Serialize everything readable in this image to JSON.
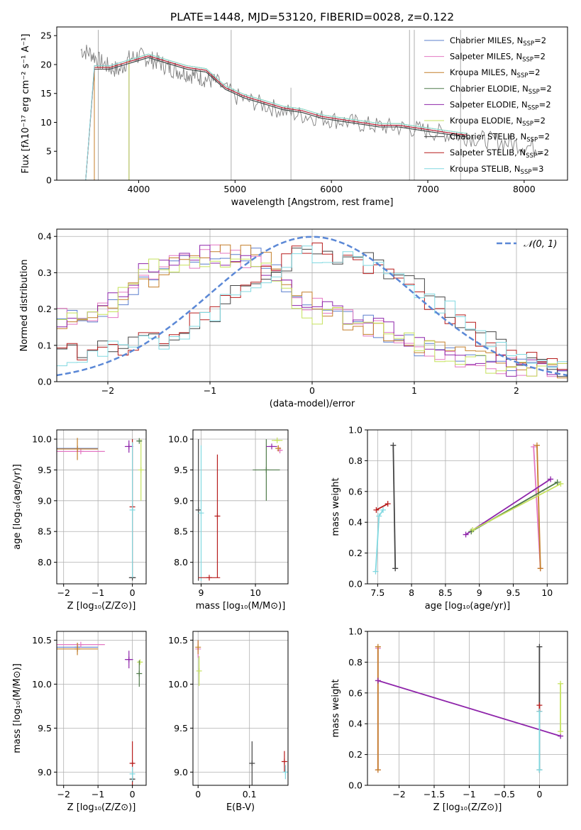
{
  "figure": {
    "title": "PLATE=1448, MJD=53120, FIBERID=0028, z=0.122"
  },
  "chart_data": [
    {
      "id": "spectrum",
      "type": "line",
      "title": "PLATE=1448, MJD=53120, FIBERID=0028, z=0.122",
      "xlabel": "wavelength [Angstrom, rest frame]",
      "ylabel": "Flux [fλ10⁻¹⁷ erg cm⁻² s⁻¹ A⁻¹]",
      "xlim": [
        3150,
        8450
      ],
      "ylim": [
        0,
        26.5
      ],
      "xticks": [
        4000,
        5000,
        6000,
        7000,
        8000
      ],
      "yticks": [
        0,
        5,
        10,
        15,
        20,
        25
      ],
      "grid": false,
      "legend_position": "upper-right",
      "data_series": {
        "name": "data",
        "color": "#808080",
        "x": [
          3400,
          3500,
          3600,
          3700,
          3800,
          3900,
          4000,
          4100,
          4200,
          4300,
          4400,
          4500,
          4600,
          4700,
          4800,
          5000,
          5200,
          5400,
          5600,
          5800,
          6000,
          6200,
          6400,
          6600,
          6800,
          7000,
          7200,
          7400,
          7600,
          7800,
          8000,
          8200
        ],
        "y": [
          22.5,
          22.0,
          20.5,
          19.5,
          19.0,
          21.0,
          21.5,
          21.0,
          20.5,
          19.5,
          19.0,
          18.5,
          18.0,
          17.5,
          17.0,
          14.5,
          13.5,
          12.5,
          11.5,
          11.0,
          10.5,
          10.0,
          9.5,
          9.2,
          9.0,
          8.5,
          8.0,
          7.5,
          7.0,
          6.5,
          6.0,
          5.5
        ]
      },
      "series": [
        {
          "name": "Chabrier MILES, N_SSP=2",
          "color": "#5b7fce",
          "start": 3540
        },
        {
          "name": "Salpeter MILES, N_SSP=2",
          "color": "#e377c2",
          "start": 3540
        },
        {
          "name": "Kroupa MILES, N_SSP=2",
          "color": "#c47f2a",
          "start": 3540
        },
        {
          "name": "Chabrier ELODIE, N_SSP=2",
          "color": "#4f7a4a",
          "start": 3900
        },
        {
          "name": "Salpeter ELODIE, N_SSP=2",
          "color": "#8e24aa",
          "start": 3900
        },
        {
          "name": "Kroupa ELODIE, N_SSP=2",
          "color": "#c5e25c",
          "start": 3900
        },
        {
          "name": "Chabrier STELIB, N_SSP=2",
          "color": "#444444",
          "start": 3450
        },
        {
          "name": "Salpeter STELIB, N_SSP=2",
          "color": "#b71c1c",
          "start": 3450
        },
        {
          "name": "Kroupa STELIB, N_SSP=3",
          "color": "#80d8e0",
          "start": 3450
        }
      ],
      "model_y": {
        "x": [
          3540,
          3700,
          3900,
          4100,
          4300,
          4500,
          4700,
          4900,
          5100,
          5300,
          5500,
          5700,
          5900,
          6100,
          6300,
          6500,
          6700,
          6900,
          7100,
          7300,
          7400
        ],
        "y": [
          19.5,
          19.5,
          20.5,
          21.5,
          20.5,
          19.5,
          19.0,
          16.0,
          14.5,
          13.5,
          12.5,
          12.0,
          11.0,
          10.5,
          10.0,
          9.5,
          9.5,
          9.0,
          8.5,
          8.0,
          7.8
        ]
      }
    },
    {
      "id": "residuals",
      "type": "line",
      "xlabel": "(data-model)/error",
      "ylabel": "Normed distribution",
      "xlim": [
        -2.5,
        2.5
      ],
      "ylim": [
        0,
        0.42
      ],
      "xticks": [
        -2,
        -1,
        0,
        1,
        2
      ],
      "yticks": [
        0.0,
        0.1,
        0.2,
        0.3,
        0.4
      ],
      "grid": true,
      "legend": "𝒩(0, 1)",
      "legend_position": "upper-right",
      "gaussian": {
        "mean": 0,
        "sigma": 1,
        "color": "#5b88d6"
      },
      "histograms": [
        {
          "color": "#5b7fce",
          "x": [
            -2.5,
            -2.0,
            -1.5,
            -1.0,
            -0.5,
            0.0,
            0.5,
            1.0,
            1.5,
            2.0,
            2.5
          ],
          "y": [
            0.16,
            0.2,
            0.3,
            0.34,
            0.35,
            0.2,
            0.17,
            0.1,
            0.06,
            0.04,
            0.03
          ]
        },
        {
          "color": "#e377c2",
          "x": [
            -2.5,
            -2.0,
            -1.5,
            -1.0,
            -0.5,
            0.0,
            0.5,
            1.0,
            1.5,
            2.0,
            2.5
          ],
          "y": [
            0.18,
            0.19,
            0.31,
            0.35,
            0.33,
            0.21,
            0.16,
            0.09,
            0.06,
            0.04,
            0.03
          ]
        },
        {
          "color": "#c47f2a",
          "x": [
            -2.5,
            -2.0,
            -1.5,
            -1.0,
            -0.5,
            0.0,
            0.5,
            1.0,
            1.5,
            2.0,
            2.5
          ],
          "y": [
            0.17,
            0.2,
            0.29,
            0.36,
            0.34,
            0.22,
            0.15,
            0.1,
            0.07,
            0.04,
            0.03
          ]
        },
        {
          "color": "#8e24aa",
          "x": [
            -2.5,
            -2.0,
            -1.5,
            -1.0,
            -0.5,
            0.0,
            0.5,
            1.0,
            1.5,
            2.0,
            2.5
          ],
          "y": [
            0.16,
            0.22,
            0.34,
            0.36,
            0.31,
            0.2,
            0.17,
            0.11,
            0.06,
            0.04,
            0.03
          ]
        },
        {
          "color": "#c5e25c",
          "x": [
            -2.5,
            -2.0,
            -1.5,
            -1.0,
            -0.5,
            0.0,
            0.5,
            1.0,
            1.5,
            2.0,
            2.5
          ],
          "y": [
            0.17,
            0.21,
            0.32,
            0.33,
            0.32,
            0.19,
            0.16,
            0.1,
            0.05,
            0.03,
            0.03
          ]
        },
        {
          "color": "#444444",
          "x": [
            -2.5,
            -2.0,
            -1.5,
            -1.0,
            -0.5,
            0.0,
            0.5,
            1.0,
            1.5,
            2.0,
            2.5
          ],
          "y": [
            0.08,
            0.09,
            0.11,
            0.18,
            0.29,
            0.36,
            0.34,
            0.27,
            0.16,
            0.07,
            0.03
          ]
        },
        {
          "color": "#b71c1c",
          "x": [
            -2.5,
            -2.0,
            -1.5,
            -1.0,
            -0.5,
            0.0,
            0.5,
            1.0,
            1.5,
            2.0,
            2.5
          ],
          "y": [
            0.07,
            0.09,
            0.12,
            0.19,
            0.3,
            0.37,
            0.33,
            0.26,
            0.15,
            0.06,
            0.03
          ]
        },
        {
          "color": "#80d8e0",
          "x": [
            -2.5,
            -2.0,
            -1.5,
            -1.0,
            -0.5,
            0.0,
            0.5,
            1.0,
            1.5,
            2.0,
            2.5
          ],
          "y": [
            0.07,
            0.08,
            0.11,
            0.18,
            0.29,
            0.35,
            0.34,
            0.27,
            0.16,
            0.07,
            0.03
          ]
        }
      ]
    },
    {
      "id": "z-age",
      "type": "scatter",
      "xlabel": "Z [log₁₀(Z/Z⊙)]",
      "ylabel": "age  [log₁₀(age/yr)]",
      "xlim": [
        -2.2,
        0.4
      ],
      "ylim": [
        7.65,
        10.15
      ],
      "xticks": [
        -2,
        -1,
        0
      ],
      "yticks": [
        8.0,
        8.5,
        9.0,
        9.5,
        10.0
      ],
      "grid": true,
      "points": [
        {
          "color": "#5b7fce",
          "x": -1.6,
          "y": 9.85,
          "xerr": 0.6,
          "yerr": 0.0
        },
        {
          "color": "#e377c2",
          "x": -1.5,
          "y": 9.8,
          "xerr": 0.7,
          "yerr": 0.0
        },
        {
          "color": "#c47f2a",
          "x": -1.6,
          "y": 9.84,
          "xerr": 0.6,
          "yerr": 0.18
        },
        {
          "color": "#8e24aa",
          "x": -0.1,
          "y": 9.88,
          "xerr": 0.12,
          "yerr": 0.1
        },
        {
          "color": "#c5e25c",
          "x": 0.25,
          "y": 9.5,
          "xerr": 0.0,
          "yerr": 0.5
        },
        {
          "color": "#4f7a4a",
          "x": 0.2,
          "y": 9.97,
          "xerr": 0.05,
          "yerr": 0.0
        },
        {
          "color": "#444444",
          "x": 0.0,
          "y": 7.75,
          "xerr": 0.1,
          "yerr": 0.0
        },
        {
          "color": "#b71c1c",
          "x": 0.0,
          "y": 8.9,
          "xerr": 0.0,
          "yerr": 1.1
        },
        {
          "color": "#80d8e0",
          "x": 0.0,
          "y": 8.85,
          "xerr": 0.0,
          "yerr": 1.1
        }
      ]
    },
    {
      "id": "mass-age",
      "type": "scatter",
      "xlabel": "mass [log₁₀(M/M⊙)]",
      "ylabel": "",
      "xlim": [
        8.85,
        10.6
      ],
      "ylim": [
        7.65,
        10.15
      ],
      "xticks": [
        9,
        10
      ],
      "yticks": [
        8.0,
        8.5,
        9.0,
        9.5,
        10.0
      ],
      "grid": true,
      "points": [
        {
          "color": "#444444",
          "x": 8.95,
          "y": 8.85,
          "xerr": 0.0,
          "yerr": 1.15
        },
        {
          "color": "#80d8e0",
          "x": 9.0,
          "y": 8.8,
          "xerr": 0.0,
          "yerr": 1.1
        },
        {
          "color": "#b71c1c",
          "x": 9.15,
          "y": 7.75,
          "xerr": 0.2,
          "yerr": 0.0
        },
        {
          "color": "#b71c1c",
          "x": 9.3,
          "y": 8.75,
          "xerr": 0.0,
          "yerr": 1.0
        },
        {
          "color": "#4f7a4a",
          "x": 10.2,
          "y": 9.5,
          "xerr": 0.25,
          "yerr": 0.5
        },
        {
          "color": "#c5e25c",
          "x": 10.4,
          "y": 9.98,
          "xerr": 0.1,
          "yerr": 0.0
        },
        {
          "color": "#8e24aa",
          "x": 10.3,
          "y": 9.88,
          "xerr": 0.1,
          "yerr": 0.0
        },
        {
          "color": "#e377c2",
          "x": 10.45,
          "y": 9.82,
          "xerr": 0.05,
          "yerr": 0.05
        },
        {
          "color": "#c47f2a",
          "x": 10.42,
          "y": 9.85,
          "xerr": 0.05,
          "yerr": 0.05
        }
      ]
    },
    {
      "id": "age-weight",
      "type": "line",
      "xlabel": "age  [log₁₀(age/yr)]",
      "ylabel": "mass weight",
      "xlim": [
        7.35,
        10.3
      ],
      "ylim": [
        0,
        1
      ],
      "xticks": [
        7.5,
        8.0,
        8.5,
        9.0,
        9.5,
        10.0
      ],
      "yticks": [
        0.0,
        0.2,
        0.4,
        0.6,
        0.8,
        1.0
      ],
      "grid": true,
      "series": [
        {
          "color": "#444444",
          "x": [
            7.73,
            7.76
          ],
          "y": [
            0.9,
            0.1
          ]
        },
        {
          "color": "#b71c1c",
          "x": [
            7.48,
            7.65
          ],
          "y": [
            0.48,
            0.52
          ]
        },
        {
          "color": "#80d8e0",
          "x": [
            7.47,
            7.52,
            7.58
          ],
          "y": [
            0.08,
            0.44,
            0.48
          ]
        },
        {
          "color": "#e377c2",
          "x": [
            9.8,
            9.9
          ],
          "y": [
            0.89,
            0.1
          ]
        },
        {
          "color": "#c47f2a",
          "x": [
            9.85,
            9.9
          ],
          "y": [
            0.9,
            0.1
          ]
        },
        {
          "color": "#8e24aa",
          "x": [
            8.8,
            10.05
          ],
          "y": [
            0.32,
            0.68
          ]
        },
        {
          "color": "#4f7a4a",
          "x": [
            8.88,
            10.15
          ],
          "y": [
            0.34,
            0.66
          ]
        },
        {
          "color": "#c5e25c",
          "x": [
            8.9,
            10.2
          ],
          "y": [
            0.35,
            0.65
          ]
        }
      ]
    },
    {
      "id": "z-mass",
      "type": "scatter",
      "xlabel": "Z [log₁₀(Z/Z⊙)]",
      "ylabel": "mass [log₁₀(M/M⊙)]",
      "xlim": [
        -2.2,
        0.4
      ],
      "ylim": [
        8.85,
        10.6
      ],
      "xticks": [
        -2,
        -1,
        0
      ],
      "yticks": [
        9.0,
        9.5,
        10.0,
        10.5
      ],
      "grid": true,
      "points": [
        {
          "color": "#5b7fce",
          "x": -1.6,
          "y": 10.42,
          "xerr": 0.6,
          "yerr": 0.05
        },
        {
          "color": "#e377c2",
          "x": -1.5,
          "y": 10.45,
          "xerr": 0.7,
          "yerr": 0.0
        },
        {
          "color": "#c47f2a",
          "x": -1.6,
          "y": 10.4,
          "xerr": 0.6,
          "yerr": 0.07
        },
        {
          "color": "#8e24aa",
          "x": -0.1,
          "y": 10.28,
          "xerr": 0.12,
          "yerr": 0.1
        },
        {
          "color": "#c5e25c",
          "x": 0.22,
          "y": 10.25,
          "xerr": 0.07,
          "yerr": 0.02
        },
        {
          "color": "#4f7a4a",
          "x": 0.2,
          "y": 10.12,
          "xerr": 0.0,
          "yerr": 0.15
        },
        {
          "color": "#b71c1c",
          "x": 0.0,
          "y": 9.1,
          "xerr": 0.05,
          "yerr": 0.25
        },
        {
          "color": "#444444",
          "x": 0.0,
          "y": 8.92,
          "xerr": 0.08,
          "yerr": 0.0
        },
        {
          "color": "#80d8e0",
          "x": 0.0,
          "y": 8.98,
          "xerr": 0.0,
          "yerr": 0.08
        }
      ]
    },
    {
      "id": "ebv-mass",
      "type": "scatter",
      "xlabel": "E(B-V)",
      "ylabel": "",
      "xlim": [
        -0.01,
        0.175
      ],
      "ylim": [
        8.85,
        10.6
      ],
      "xticks": [
        0.0,
        0.1
      ],
      "yticks": [
        9.0,
        9.5,
        10.0,
        10.5
      ],
      "grid": true,
      "points": [
        {
          "color": "#e377c2",
          "x": 0.0,
          "y": 10.4,
          "xerr": 0.0,
          "yerr": 0.1
        },
        {
          "color": "#c47f2a",
          "x": 0.0,
          "y": 10.42,
          "xerr": 0.0,
          "yerr": 0.08
        },
        {
          "color": "#c5e25c",
          "x": 0.002,
          "y": 10.15,
          "xerr": 0.0,
          "yerr": 0.17
        },
        {
          "color": "#444444",
          "x": 0.105,
          "y": 9.1,
          "xerr": 0.0,
          "yerr": 0.25
        },
        {
          "color": "#b71c1c",
          "x": 0.168,
          "y": 9.12,
          "xerr": 0.0,
          "yerr": 0.12
        },
        {
          "color": "#80d8e0",
          "x": 0.17,
          "y": 9.0,
          "xerr": 0.0,
          "yerr": 0.08
        }
      ]
    },
    {
      "id": "z-weight",
      "type": "line",
      "xlabel": "Z [log₁₀(Z/Z⊙)]",
      "ylabel": "mass weight",
      "xlim": [
        -2.45,
        0.4
      ],
      "ylim": [
        0,
        1
      ],
      "xticks": [
        -2.0,
        -1.5,
        -1.0,
        -0.5,
        0.0
      ],
      "yticks": [
        0.0,
        0.2,
        0.4,
        0.6,
        0.8,
        1.0
      ],
      "grid": true,
      "series": [
        {
          "color": "#e377c2",
          "x": [
            -2.3,
            -2.3
          ],
          "y": [
            0.89,
            0.1
          ]
        },
        {
          "color": "#c47f2a",
          "x": [
            -2.3,
            -2.3
          ],
          "y": [
            0.9,
            0.1
          ]
        },
        {
          "color": "#8e24aa",
          "x": [
            -2.3,
            0.3
          ],
          "y": [
            0.68,
            0.32
          ]
        },
        {
          "color": "#444444",
          "x": [
            0.0,
            0.0
          ],
          "y": [
            0.9,
            0.1
          ]
        },
        {
          "color": "#b71c1c",
          "x": [
            0.0,
            0.0
          ],
          "y": [
            0.52,
            0.48
          ]
        },
        {
          "color": "#80d8e0",
          "x": [
            0.0,
            0.0
          ],
          "y": [
            0.48,
            0.1
          ]
        },
        {
          "color": "#c5e25c",
          "x": [
            0.3,
            0.3
          ],
          "y": [
            0.66,
            0.35
          ]
        }
      ]
    }
  ]
}
